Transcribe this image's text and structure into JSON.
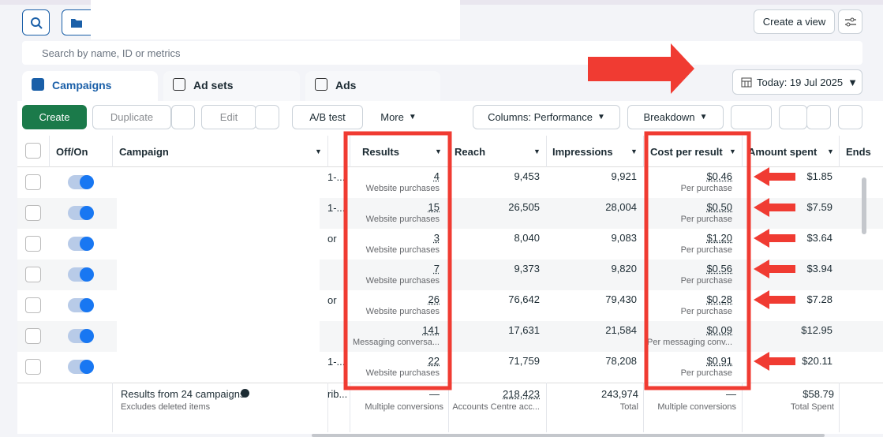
{
  "top": {
    "search_placeholder": "Search by name, ID or metrics",
    "create_view": "Create a view"
  },
  "tabs": [
    "Campaigns",
    "Ad sets",
    "Ads"
  ],
  "date": "Today: 19 Jul 2025",
  "actions": [
    "Create",
    "Duplicate",
    "Edit",
    "A/B test",
    "More",
    "Columns: Performance",
    "Breakdown"
  ],
  "table": {
    "headers": [
      "Off/On",
      "Campaign",
      "Results",
      "Reach",
      "Impressions",
      "Cost per result",
      "Amount spent",
      "Ends"
    ],
    "rows": [
      {
        "clipped": "1-...",
        "results": "4",
        "result_type": "Website purchases",
        "reach": "9,453",
        "impressions": "9,921",
        "cost": "$0.46",
        "cost_type": "Per purchase",
        "spent": "$1.85"
      },
      {
        "clipped": "1-...",
        "results": "15",
        "result_type": "Website purchases",
        "reach": "26,505",
        "impressions": "28,004",
        "cost": "$0.50",
        "cost_type": "Per purchase",
        "spent": "$7.59"
      },
      {
        "clipped": "or",
        "results": "3",
        "result_type": "Website purchases",
        "reach": "8,040",
        "impressions": "9,083",
        "cost": "$1.20",
        "cost_type": "Per purchase",
        "spent": "$3.64"
      },
      {
        "results": "7",
        "result_type": "Website purchases",
        "reach": "9,373",
        "impressions": "9,820",
        "cost": "$0.56",
        "cost_type": "Per purchase",
        "spent": "$3.94"
      },
      {
        "clipped": "or",
        "results": "26",
        "result_type": "Website purchases",
        "reach": "76,642",
        "impressions": "79,430",
        "cost": "$0.28",
        "cost_type": "Per purchase",
        "spent": "$7.28"
      },
      {
        "results": "141",
        "result_type": "Messaging conversa...",
        "reach": "17,631",
        "impressions": "21,584",
        "cost": "$0.09",
        "cost_type": "Per messaging conv...",
        "spent": "$12.95"
      },
      {
        "clipped": "1-...",
        "results": "22",
        "result_type": "Website purchases",
        "reach": "71,759",
        "impressions": "78,208",
        "cost": "$0.91",
        "cost_type": "Per purchase",
        "spent": "$20.11"
      }
    ],
    "footer": {
      "summary": "Results from 24 campaigns",
      "note": "Excludes deleted items",
      "clipped": "rib...",
      "results": "—",
      "results_type": "Multiple conversions",
      "reach": "218,423",
      "reach_type": "Accounts Centre acc...",
      "impressions": "243,974",
      "impressions_type": "Total",
      "cost": "—",
      "cost_type": "Multiple conversions",
      "spent": "$58.79",
      "spent_type": "Total Spent"
    }
  }
}
